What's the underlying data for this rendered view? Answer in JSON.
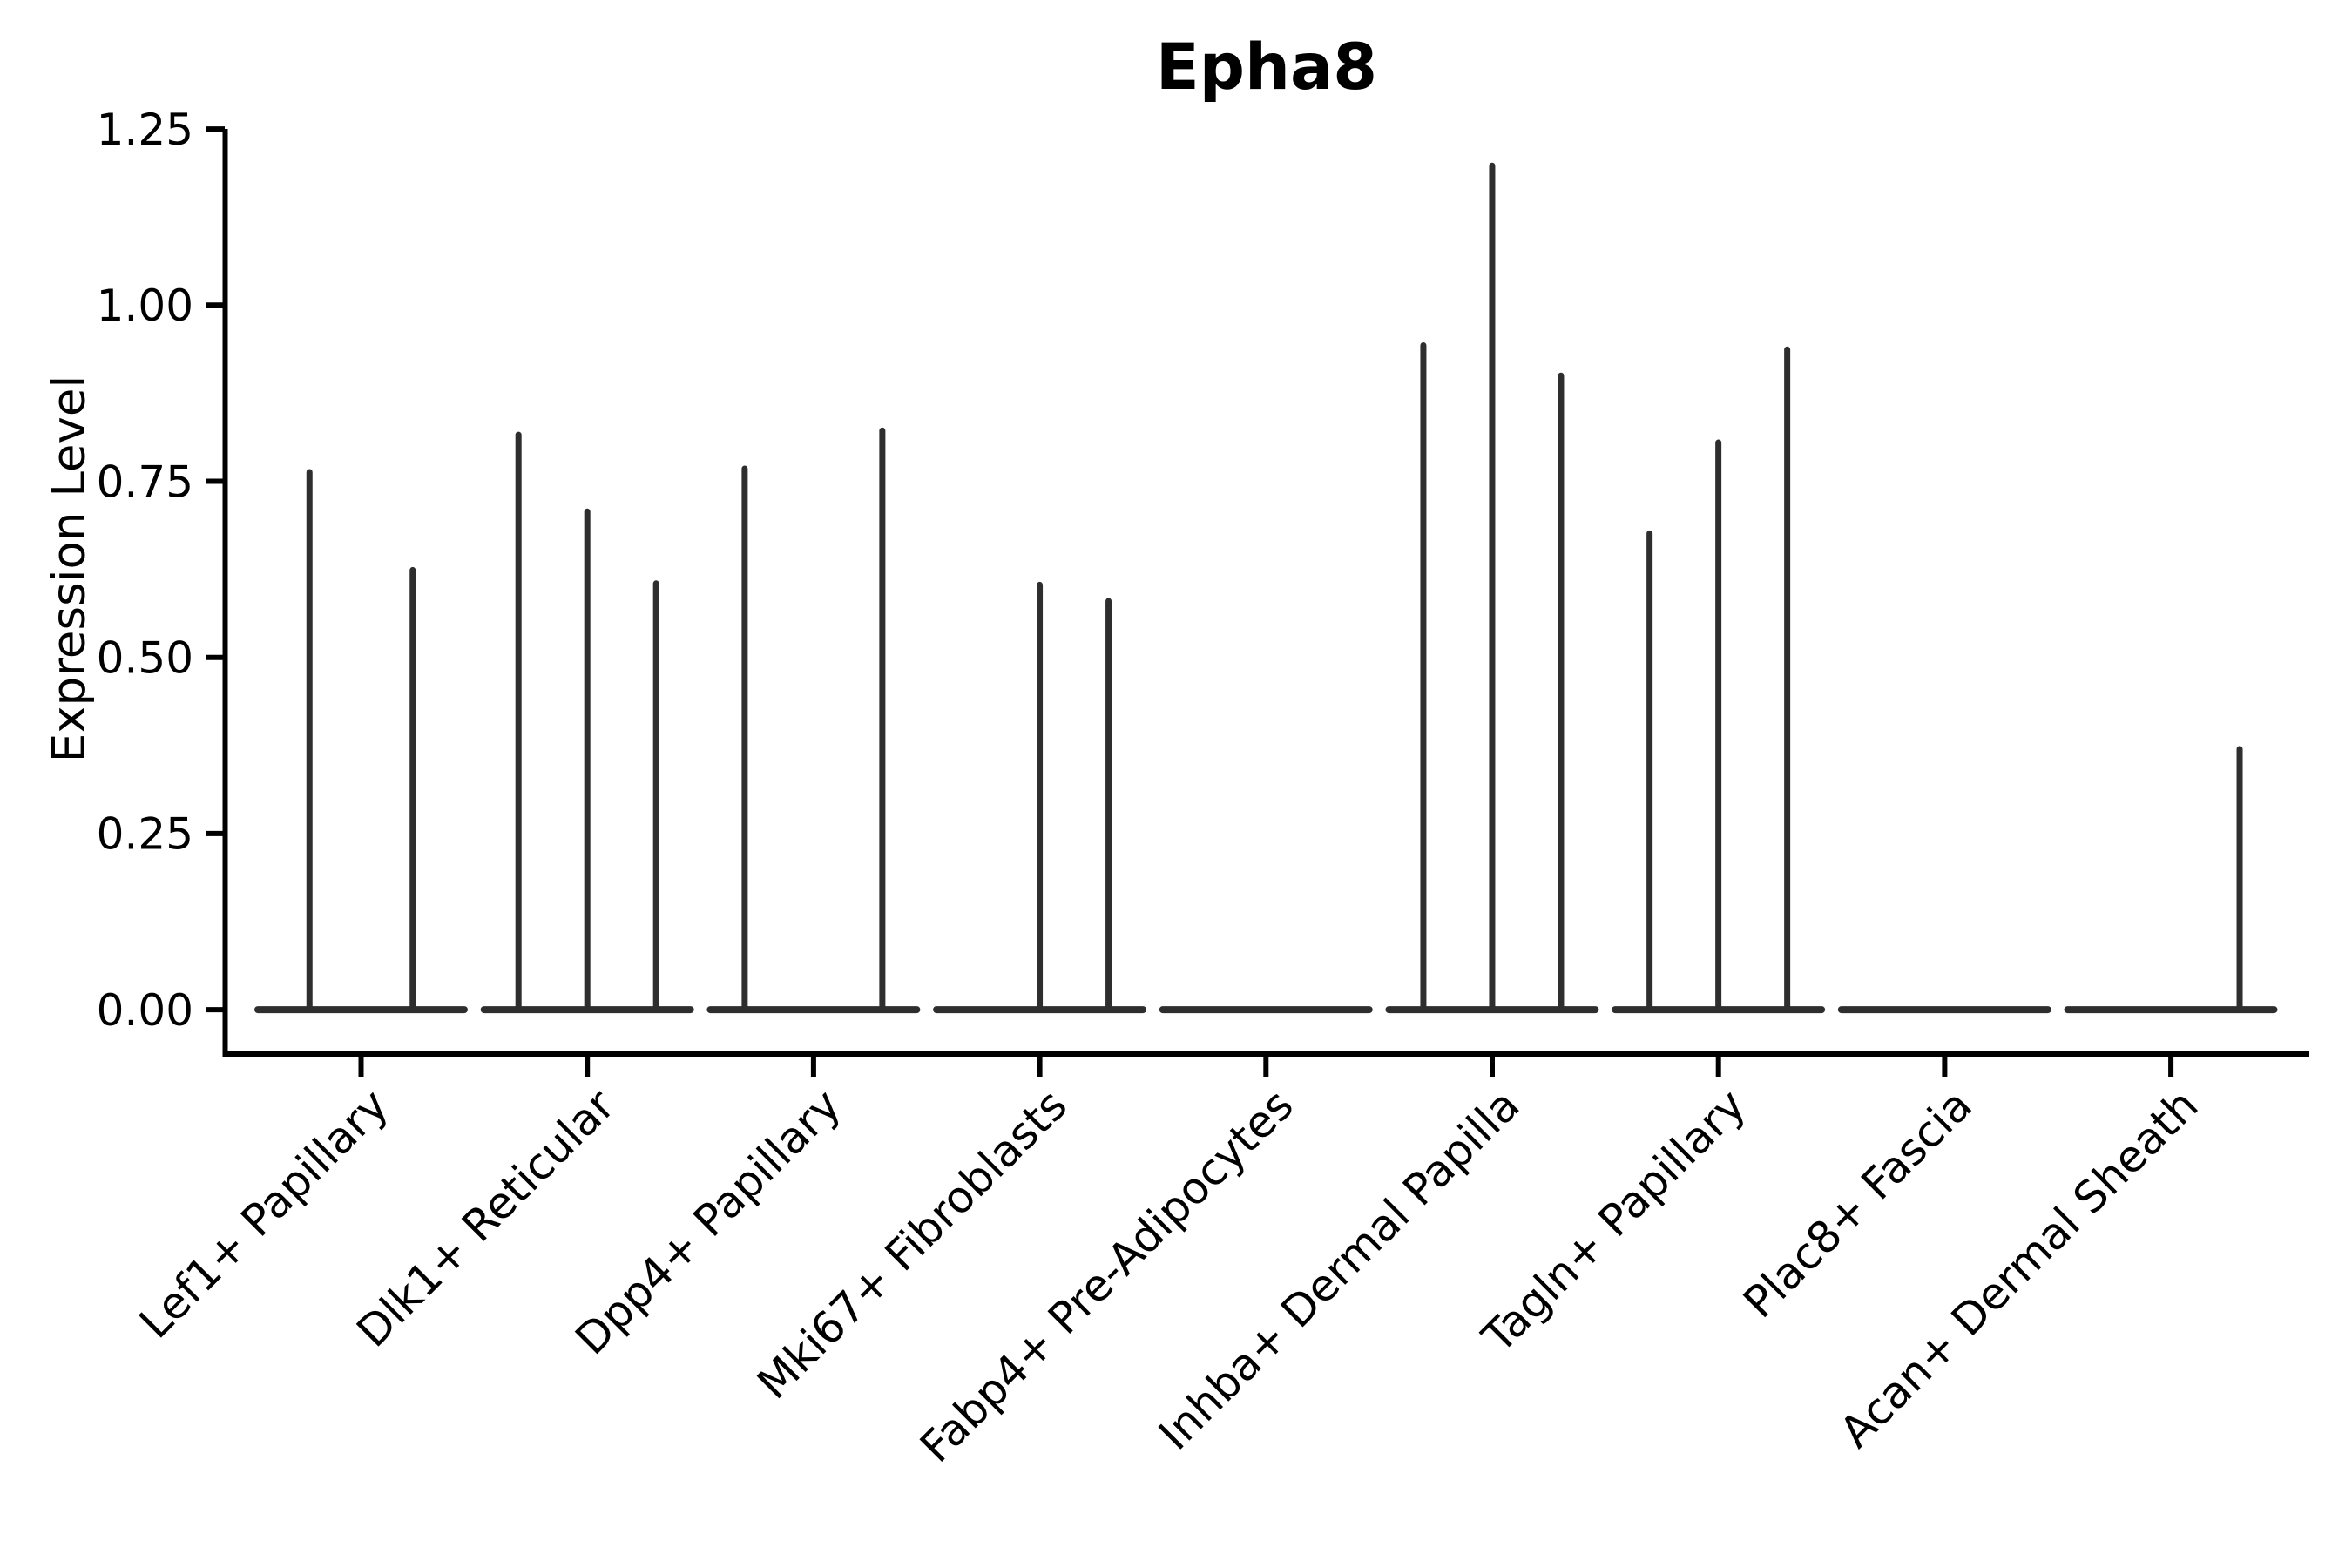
{
  "chart_data": {
    "type": "violin",
    "title": "Epha8",
    "ylabel": "Expression Level",
    "xlabel": "",
    "ylim": [
      0,
      1.25
    ],
    "yticks": [
      1.25,
      1.0,
      0.75,
      0.5,
      0.25,
      0.0
    ],
    "ytick_labels": [
      "1.25",
      "1.00",
      "0.75",
      "0.50",
      "0.25",
      "0.00"
    ],
    "grid": false,
    "legend": "none",
    "style_note": "needle-thin dark violins on a flat zero baseline, one group of 2-3 violins per cell-type category",
    "groups": [
      {
        "label": "Lef1+ Papillary",
        "violin_maxima": [
          0.763,
          0.624
        ]
      },
      {
        "label": "Dlk1+ Reticular",
        "violin_maxima": [
          0.816,
          0.707,
          0.605
        ]
      },
      {
        "label": "Dpp4+ Papillary",
        "violin_maxima": [
          0.768,
          0,
          0.822
        ]
      },
      {
        "label": "Mki67+ Fibroblasts",
        "violin_maxima": [
          0,
          0.603,
          0.58
        ]
      },
      {
        "label": "Fabp4+ Pre-Adipocytes",
        "violin_maxima": [
          0,
          0,
          0
        ]
      },
      {
        "label": "Inhba+ Dermal Papilla",
        "violin_maxima": [
          0.943,
          1.198,
          0.9
        ]
      },
      {
        "label": "Tagln+ Papillary",
        "violin_maxima": [
          0.676,
          0.805,
          0.937
        ]
      },
      {
        "label": "Plac8+ Fascia",
        "violin_maxima": [
          0,
          0,
          0
        ]
      },
      {
        "label": "Acan+ Dermal Sheath",
        "violin_maxima": [
          0,
          0,
          0.37
        ]
      }
    ],
    "colors": {
      "violin_stroke": "#2e2e2e",
      "axis": "#000000",
      "text": "#000000",
      "background": "#ffffff"
    }
  }
}
